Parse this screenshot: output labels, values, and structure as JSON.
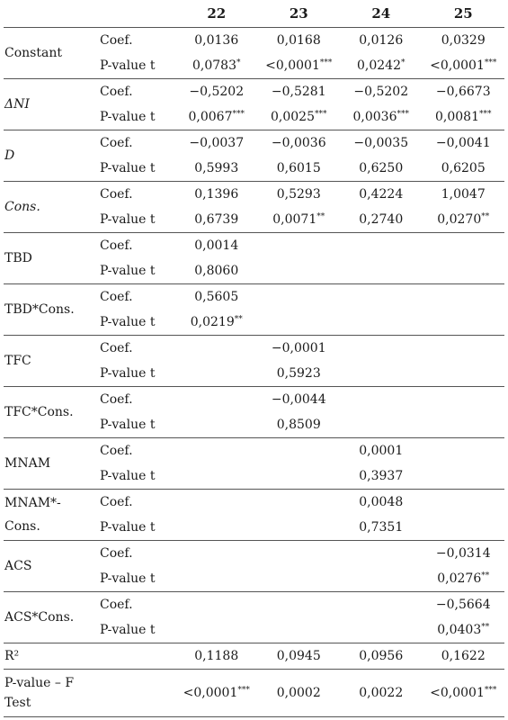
{
  "columns": [
    "22",
    "23",
    "24",
    "25"
  ],
  "rows": [
    {
      "variable": "Constant",
      "stats": [
        {
          "label": "Coef.",
          "values": [
            "0,0136",
            "0,0168",
            "0,0126",
            "0,0329"
          ]
        },
        {
          "label": "P-value t",
          "values": [
            "0,0783*",
            "<0,0001***",
            "0,0242*",
            "<0,0001***"
          ]
        }
      ]
    },
    {
      "variable": "ΔNI",
      "italic": true,
      "stats": [
        {
          "label": "Coef.",
          "values": [
            "−0,5202",
            "−0,5281",
            "−0,5202",
            "−0,6673"
          ]
        },
        {
          "label": "P-value t",
          "values": [
            "0,0067***",
            "0,0025***",
            "0,0036***",
            "0,0081***"
          ]
        }
      ]
    },
    {
      "variable": "D",
      "italic": true,
      "stats": [
        {
          "label": "Coef.",
          "values": [
            "−0,0037",
            "−0,0036",
            "−0,0035",
            "−0,0041"
          ]
        },
        {
          "label": "P-value t",
          "values": [
            "0,5993",
            "0,6015",
            "0,6250",
            "0,6205"
          ]
        }
      ]
    },
    {
      "variable": "Cons.",
      "italic": true,
      "stats": [
        {
          "label": "Coef.",
          "values": [
            "0,1396",
            "0,5293",
            "0,4224",
            "1,0047"
          ]
        },
        {
          "label": "P-value t",
          "values": [
            "0,6739",
            "0,0071**",
            "0,2740",
            "0,0270**"
          ]
        }
      ]
    },
    {
      "variable": "TBD",
      "stats": [
        {
          "label": "Coef.",
          "values": [
            "0,0014",
            "",
            "",
            ""
          ]
        },
        {
          "label": "P-value t",
          "values": [
            "0,8060",
            "",
            "",
            ""
          ]
        }
      ]
    },
    {
      "variable": "TBD*Cons.",
      "stats": [
        {
          "label": "Coef.",
          "values": [
            "0,5605",
            "",
            "",
            ""
          ]
        },
        {
          "label": "P-value t",
          "values": [
            "0,0219**",
            "",
            "",
            ""
          ]
        }
      ]
    },
    {
      "variable": "TFC",
      "stats": [
        {
          "label": "Coef.",
          "values": [
            "",
            "−0,0001",
            "",
            ""
          ]
        },
        {
          "label": "P-value t",
          "values": [
            "",
            "0,5923",
            "",
            ""
          ]
        }
      ]
    },
    {
      "variable": "TFC*Cons.",
      "stats": [
        {
          "label": "Coef.",
          "values": [
            "",
            "−0,0044",
            "",
            ""
          ]
        },
        {
          "label": "P-value t",
          "values": [
            "",
            "0,8509",
            "",
            ""
          ]
        }
      ]
    },
    {
      "variable": "MNAM",
      "stats": [
        {
          "label": "Coef.",
          "values": [
            "",
            "",
            "0,0001",
            ""
          ]
        },
        {
          "label": "P-value t",
          "values": [
            "",
            "",
            "0,3937",
            ""
          ]
        }
      ]
    },
    {
      "variable": "MNAM*-Cons.",
      "stats": [
        {
          "label": "Coef.",
          "values": [
            "",
            "",
            "0,0048",
            ""
          ]
        },
        {
          "label": "P-value t",
          "values": [
            "",
            "",
            "0,7351",
            ""
          ]
        }
      ]
    },
    {
      "variable": "ACS",
      "stats": [
        {
          "label": "Coef.",
          "values": [
            "",
            "",
            "",
            "−0,0314"
          ]
        },
        {
          "label": "P-value t",
          "values": [
            "",
            "",
            "",
            "0,0276**"
          ]
        }
      ]
    },
    {
      "variable": "ACS*Cons.",
      "stats": [
        {
          "label": "Coef.",
          "values": [
            "",
            "",
            "",
            "−0,5664"
          ]
        },
        {
          "label": "P-value t",
          "values": [
            "",
            "",
            "",
            "0,0403**"
          ]
        }
      ]
    }
  ],
  "summary": [
    {
      "label": "R²",
      "values": [
        "0,1188",
        "0,0945",
        "0,0956",
        "0,1622"
      ]
    },
    {
      "label": "P-value – F Test",
      "values": [
        "<0,0001***",
        "0,0002",
        "0,0022",
        "<0,0001***"
      ]
    }
  ]
}
